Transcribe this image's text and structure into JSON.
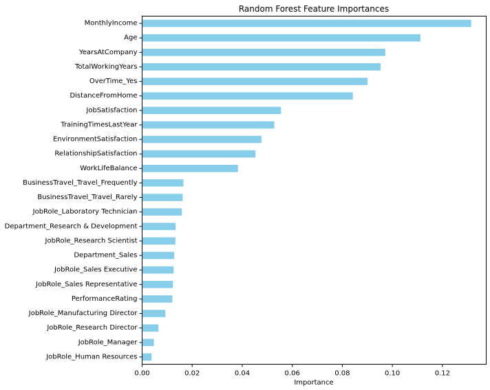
{
  "chart_data": {
    "type": "bar",
    "orientation": "horizontal",
    "title": "Random Forest Feature Importances",
    "xlabel": "Importance",
    "ylabel": "",
    "xlim": [
      0,
      0.1375
    ],
    "xticks": [
      0.0,
      0.02,
      0.04,
      0.06,
      0.08,
      0.1,
      0.12
    ],
    "xtick_labels": [
      "0.00",
      "0.02",
      "0.04",
      "0.06",
      "0.08",
      "0.10",
      "0.12"
    ],
    "grid": false,
    "bar_color": "#87ceeb",
    "categories": [
      "MonthlyIncome",
      "Age",
      "YearsAtCompany",
      "TotalWorkingYears",
      "OverTime_Yes",
      "DistanceFromHome",
      "JobSatisfaction",
      "TrainingTimesLastYear",
      "EnvironmentSatisfaction",
      "RelationshipSatisfaction",
      "WorkLifeBalance",
      "BusinessTravel_Travel_Frequently",
      "BusinessTravel_Travel_Rarely",
      "JobRole_Laboratory Technician",
      "Department_Research & Development",
      "JobRole_Research Scientist",
      "Department_Sales",
      "JobRole_Sales Executive",
      "JobRole_Sales Representative",
      "PerformanceRating",
      "JobRole_Manufacturing Director",
      "JobRole_Research Director",
      "JobRole_Manager",
      "JobRole_Human Resources"
    ],
    "values": [
      0.1315,
      0.1112,
      0.0972,
      0.0953,
      0.0901,
      0.0842,
      0.0555,
      0.0528,
      0.0477,
      0.0453,
      0.0383,
      0.0165,
      0.0162,
      0.0159,
      0.0134,
      0.0133,
      0.0128,
      0.0126,
      0.0123,
      0.0121,
      0.0093,
      0.0065,
      0.0047,
      0.0038
    ]
  }
}
